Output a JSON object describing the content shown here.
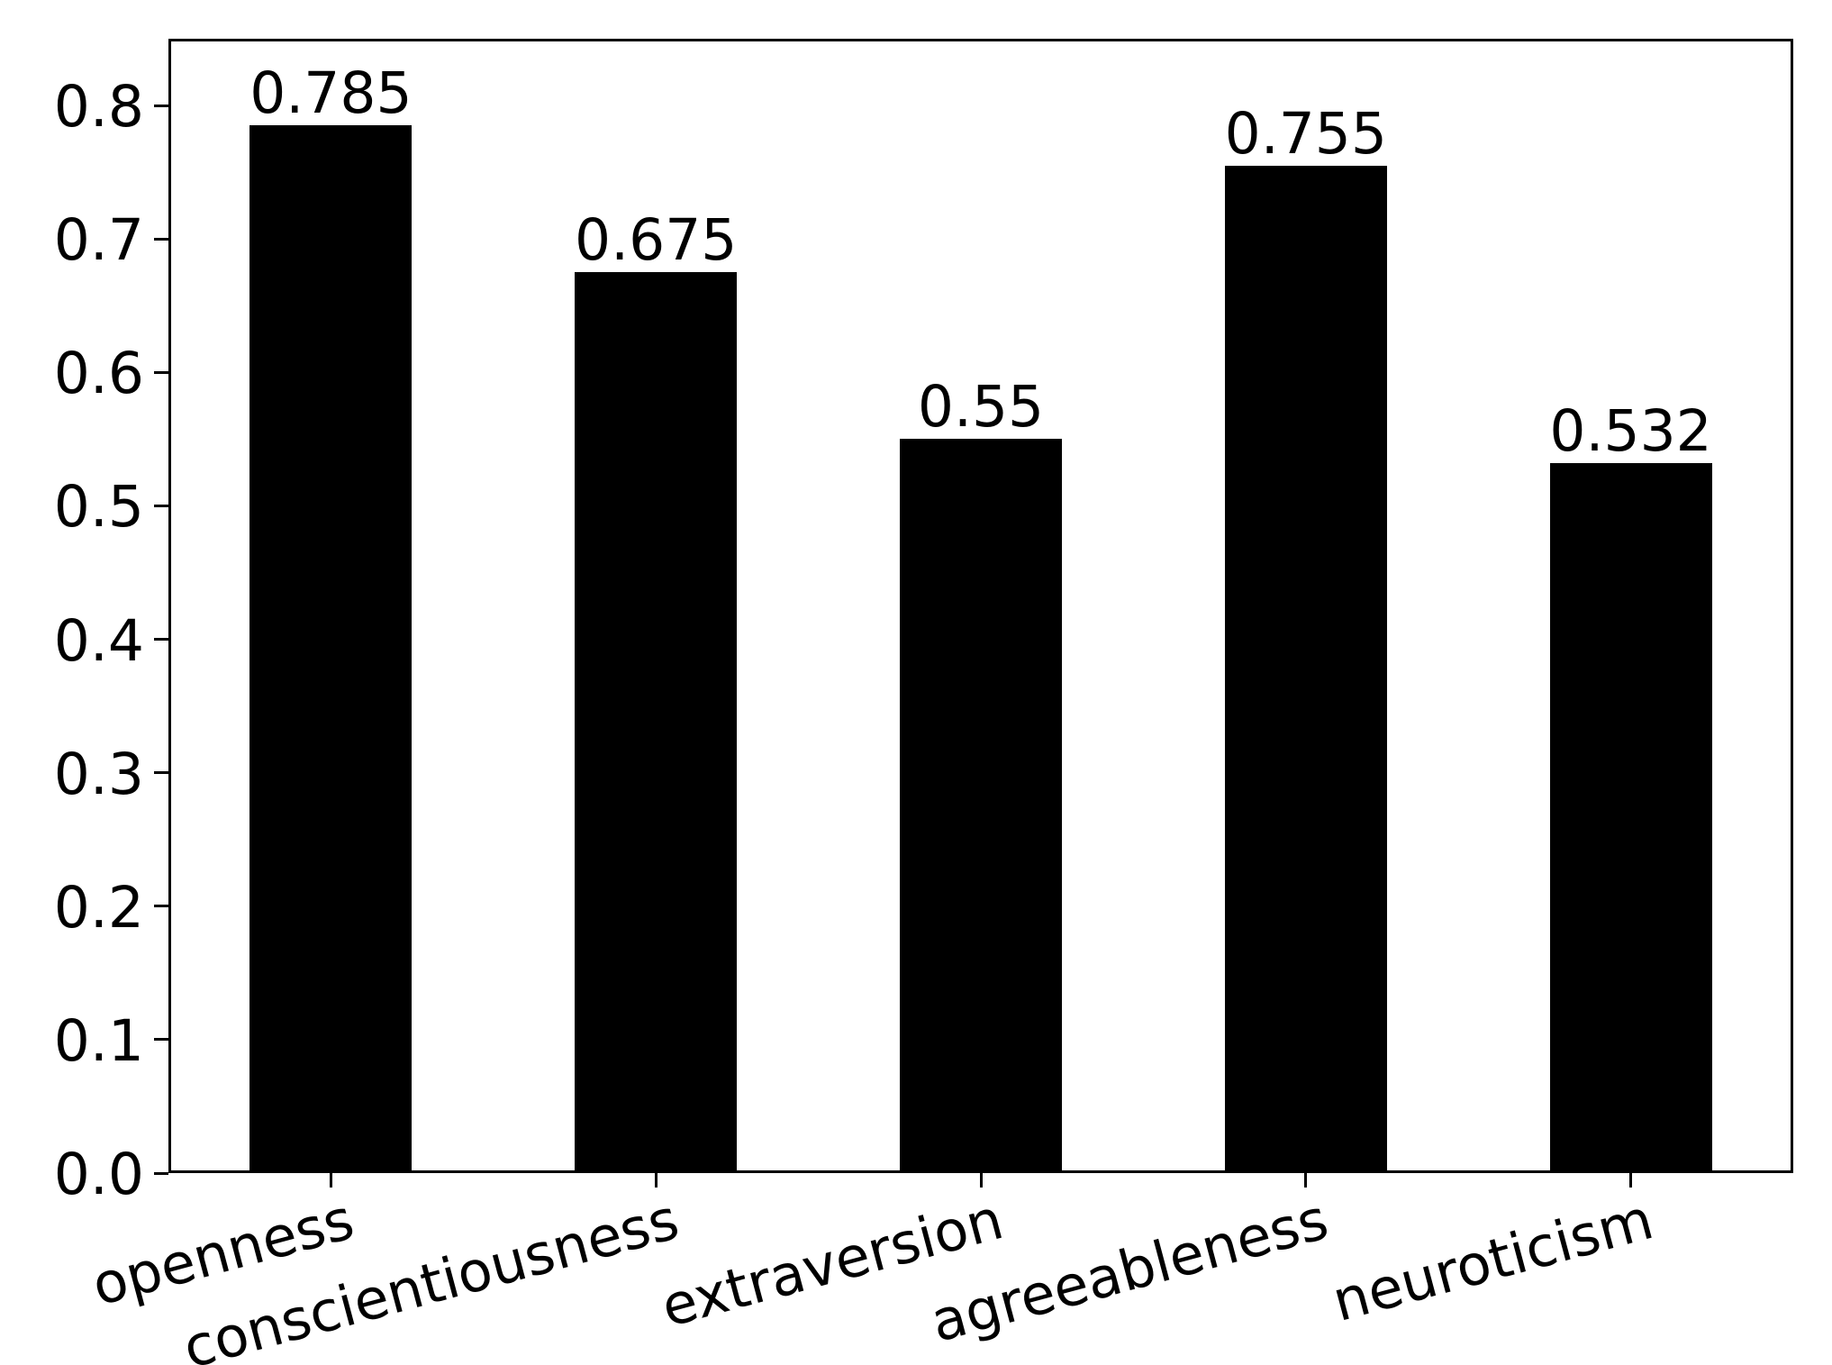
{
  "chart_data": {
    "type": "bar",
    "title": "",
    "xlabel": "",
    "ylabel": "",
    "categories": [
      "openness",
      "conscientiousness",
      "extraversion",
      "agreeableness",
      "neuroticism"
    ],
    "values": [
      0.785,
      0.675,
      0.55,
      0.755,
      0.532
    ],
    "bar_labels": [
      "0.785",
      "0.675",
      "0.55",
      "0.755",
      "0.532"
    ],
    "yticks": [
      0.0,
      0.1,
      0.2,
      0.3,
      0.4,
      0.5,
      0.6,
      0.7,
      0.8
    ],
    "ytick_labels": [
      "0.0",
      "0.1",
      "0.2",
      "0.3",
      "0.4",
      "0.5",
      "0.6",
      "0.7",
      "0.8"
    ],
    "ylim": [
      0,
      0.85
    ],
    "xtick_rotation_deg": 15,
    "grid": false,
    "legend": false,
    "colors": {
      "bar": "#000000",
      "text": "#000000",
      "axis": "#000000",
      "background": "#ffffff"
    }
  }
}
